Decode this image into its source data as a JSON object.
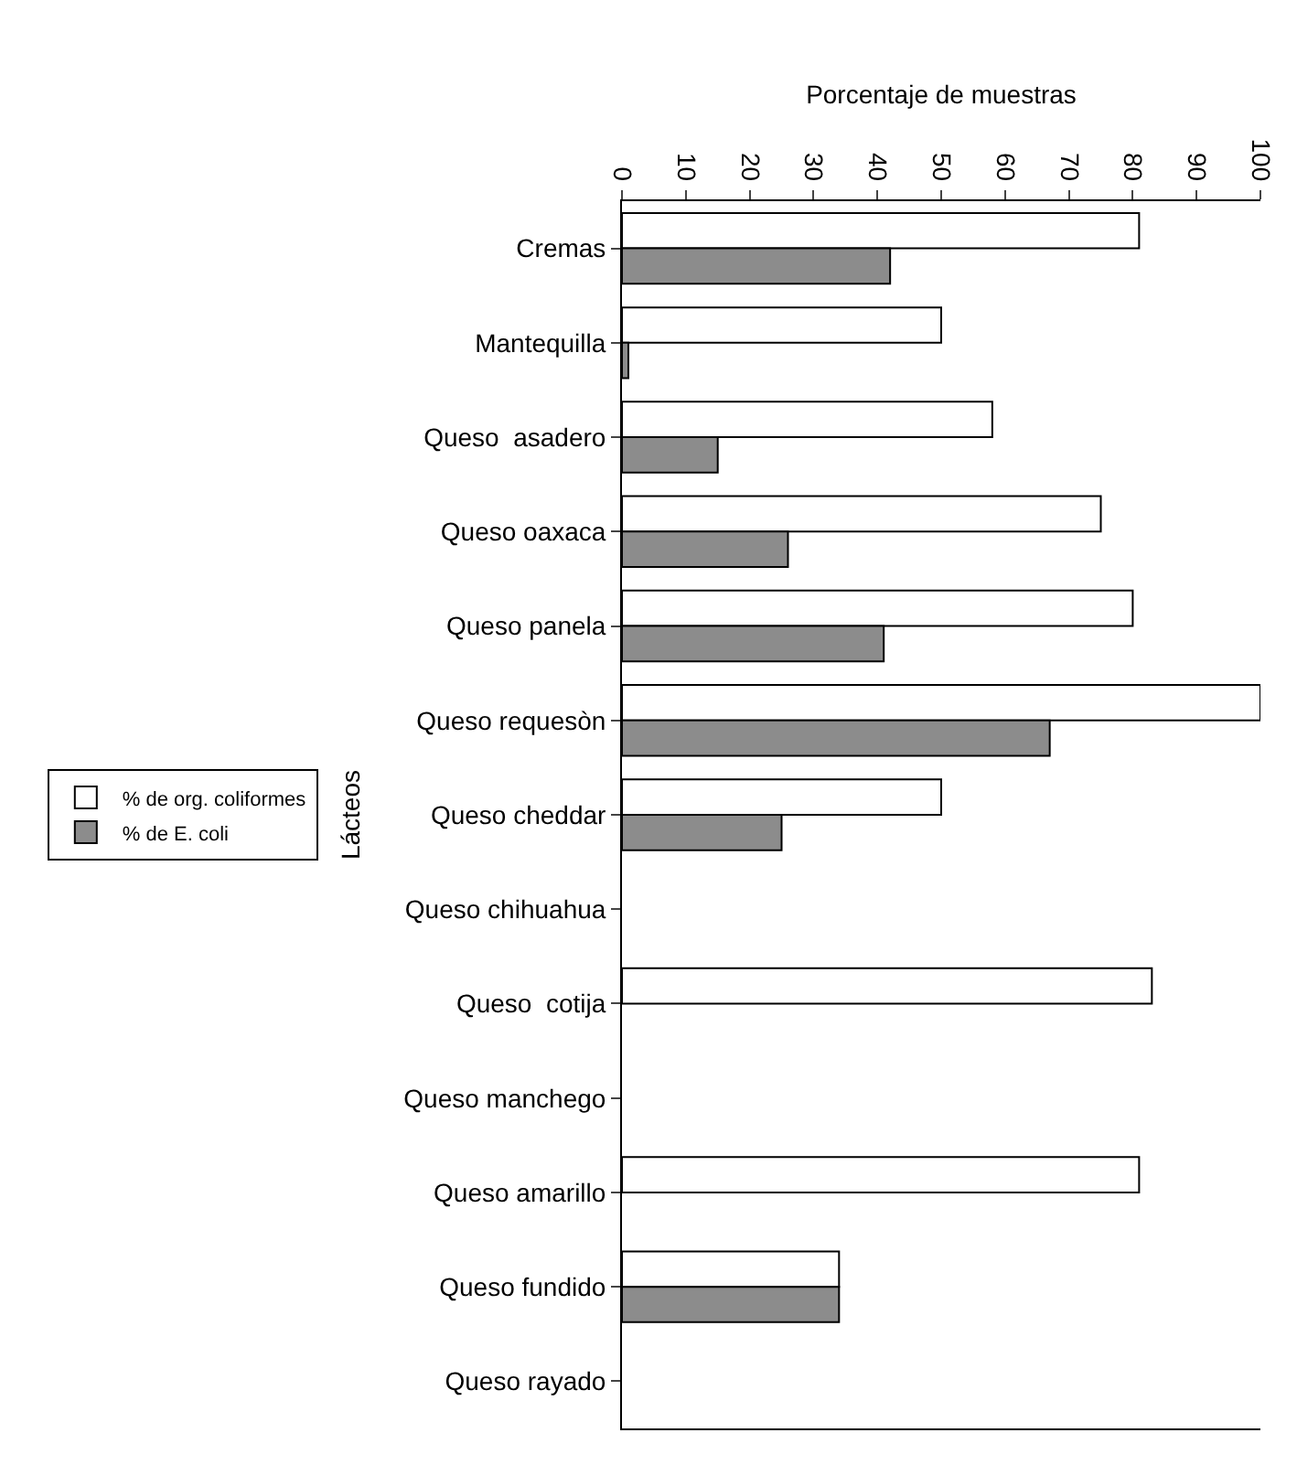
{
  "chart_data": {
    "type": "bar",
    "orientation": "horizontal",
    "xlabel": "Porcentaje de muestras",
    "ylabel": "Lácteos",
    "categories": [
      "Cremas",
      "Mantequilla",
      "Queso  asadero",
      "Queso oaxaca",
      "Queso panela",
      "Queso requesòn",
      "Queso cheddar",
      "Queso chihuahua",
      "Queso  cotija",
      "Queso manchego",
      "Queso amarillo",
      "Queso fundido",
      "Queso rayado"
    ],
    "series": [
      {
        "name": "% de org. coliformes",
        "color": "#ffffff",
        "values": [
          81,
          50,
          58,
          75,
          80,
          100,
          50,
          0,
          83,
          0,
          81,
          34,
          0
        ]
      },
      {
        "name": "% de E. coli",
        "color": "#8c8c8c",
        "values": [
          42,
          1,
          15,
          26,
          41,
          67,
          25,
          0,
          0,
          0,
          0,
          34,
          0
        ]
      }
    ],
    "xlim": [
      0,
      100
    ],
    "xticks": [
      0,
      10,
      20,
      30,
      40,
      50,
      60,
      70,
      80,
      90,
      100
    ],
    "grid": false,
    "legend": "left"
  }
}
